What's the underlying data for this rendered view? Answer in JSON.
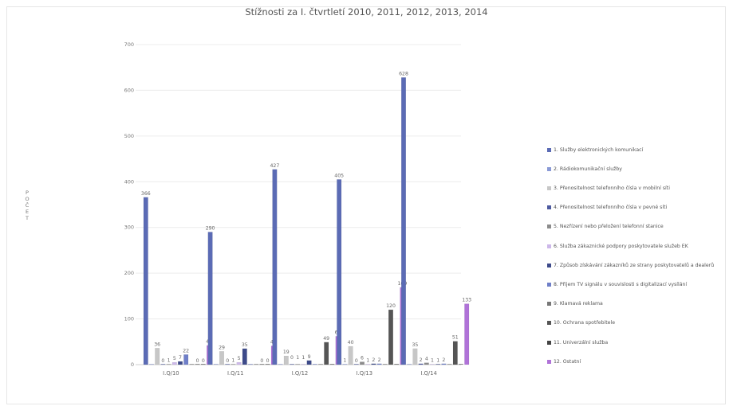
{
  "chart_data": {
    "type": "bar",
    "title": "Stížnosti za I. čtvrtletí 2010, 2011, 2012, 2013, 2014",
    "xlabel": "",
    "ylabel": "POČET",
    "ylim": [
      0,
      700
    ],
    "yticks": [
      0,
      100,
      200,
      300,
      400,
      500,
      600,
      700
    ],
    "grid": true,
    "legend_position": "right",
    "categories": [
      "I.Q/10",
      "I.Q/11",
      "I.Q/12",
      "I.Q/13",
      "I.Q/14"
    ],
    "series": [
      {
        "name": "1. Služby elektronických komunikací",
        "color": "#5b6bb5",
        "values": [
          366,
          290,
          427,
          405,
          628
        ]
      },
      {
        "name": "2. Rádiokomunikační služby",
        "color": "#8a9ad6",
        "values": [
          0,
          0,
          0,
          1,
          0
        ]
      },
      {
        "name": "3. Přenositelnost telefonního čísla v mobilní síti",
        "color": "#c7c7c7",
        "values": [
          36,
          29,
          19,
          40,
          35
        ]
      },
      {
        "name": "4. Přenositelnost telefonního čísla v pevné síti",
        "color": "#4d5aa0",
        "values": [
          0,
          0,
          0,
          0,
          2
        ]
      },
      {
        "name": "5. Nezřízení nebo přeložení telefonní stanice",
        "color": "#8c8c8c",
        "values": [
          1,
          1,
          1,
          6,
          4
        ]
      },
      {
        "name": "6. Služba zákaznické podpory poskytovatele služeb EK",
        "color": "#cdb8ea",
        "values": [
          5,
          5,
          1,
          1,
          1
        ]
      },
      {
        "name": "7. Způsob získávání zákazníků ze strany poskytovatelů a dealerů",
        "color": "#3d4a8a",
        "values": [
          7,
          35,
          9,
          2,
          1
        ]
      },
      {
        "name": "8. Příjem TV signálu v souvislosti s digitalizací vysílání",
        "color": "#6f7fc8",
        "values": [
          22,
          1,
          1,
          2,
          2
        ]
      },
      {
        "name": "9. Klamavá reklama",
        "color": "#777777",
        "values": [
          1,
          0,
          1,
          0,
          1
        ]
      },
      {
        "name": "10. Ochrana spotřebitele",
        "color": "#555555",
        "values": [
          0,
          0,
          49,
          120,
          51
        ]
      },
      {
        "name": "11. Univerzální služba",
        "color": "#444444",
        "values": [
          0,
          0,
          1,
          0,
          0
        ]
      },
      {
        "name": "12. Ostatní",
        "color": "#b073d8",
        "values": [
          42,
          41,
          62,
          169,
          133
        ]
      }
    ],
    "labels": [
      [
        "366",
        "",
        "36",
        "0",
        "1",
        "5",
        "7",
        "22",
        "",
        "0",
        "0",
        "42"
      ],
      [
        "290",
        "",
        "29",
        "0",
        "1",
        "5",
        "35",
        "",
        "",
        "0",
        "0",
        "41"
      ],
      [
        "427",
        "",
        "19",
        "",
        "",
        "",
        "9",
        "",
        "",
        "49",
        "",
        "62"
      ],
      [
        "405",
        "1",
        "40",
        "0",
        "6",
        "1",
        "2",
        "2",
        "",
        "120",
        "",
        "169"
      ],
      [
        "628",
        "",
        "35",
        "2",
        "4",
        "1",
        "1",
        "2",
        "",
        "51",
        "",
        "133"
      ]
    ],
    "extra_labels": [
      [
        "",
        "",
        "",
        "",
        "",
        "",
        "",
        "",
        "",
        "",
        "",
        ""
      ],
      [
        "",
        "",
        "",
        "",
        "",
        "",
        "",
        "",
        "",
        "",
        "",
        ""
      ],
      [
        "",
        "",
        "",
        "0",
        "1",
        "1",
        "",
        "",
        "",
        "",
        "",
        ""
      ],
      [
        "",
        "",
        "",
        "",
        "",
        "",
        "",
        "",
        "",
        "",
        "",
        ""
      ],
      [
        "",
        "",
        "",
        "",
        "",
        "",
        "",
        "",
        "",
        "",
        "",
        ""
      ]
    ]
  }
}
